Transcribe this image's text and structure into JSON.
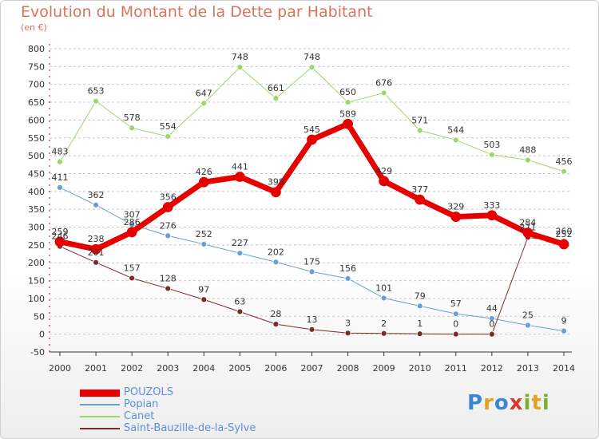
{
  "title": "Evolution du Montant de la Dette par Habitant",
  "unit": "(en €)",
  "logo": {
    "text": "Proxiti",
    "colors": [
      "#3a86d6",
      "#e8a020",
      "#3a86d6",
      "#d93a2a",
      "#7ab030",
      "#e8a020",
      "#7ab030"
    ]
  },
  "chart_data": {
    "type": "line",
    "x": [
      "2000",
      "2001",
      "2002",
      "2003",
      "2004",
      "2005",
      "2006",
      "2007",
      "2008",
      "2009",
      "2010",
      "2011",
      "2012",
      "2013",
      "2014"
    ],
    "yticks": [
      "-50",
      "0",
      "50",
      "100",
      "150",
      "200",
      "250",
      "300",
      "350",
      "400",
      "450",
      "500",
      "550",
      "600",
      "650",
      "700",
      "750",
      "800"
    ],
    "ylim": [
      -50,
      800
    ],
    "grid": "horizontal-dashed",
    "legend": "bottom-left",
    "series": [
      {
        "name": "POUZOLS",
        "color": "#e60000",
        "width": 7,
        "values": [
          259,
          238,
          286,
          356,
          426,
          441,
          398,
          545,
          589,
          429,
          377,
          329,
          333,
          284,
          252
        ],
        "labels": [
          "259",
          "238",
          "286",
          "356",
          "426",
          "441",
          "398",
          "545",
          "589",
          "429",
          "377",
          "329",
          "333",
          "284",
          "252"
        ]
      },
      {
        "name": "Popian",
        "color": "#6a9fd4",
        "width": 1,
        "values": [
          411,
          362,
          307,
          276,
          252,
          227,
          202,
          175,
          156,
          101,
          79,
          57,
          44,
          25,
          9
        ],
        "labels": [
          "411",
          "362",
          "307",
          "276",
          "252",
          "227",
          "202",
          "175",
          "156",
          "101",
          "79",
          "57",
          "44",
          "25",
          "9"
        ]
      },
      {
        "name": "Canet",
        "color": "#9ad86a",
        "width": 1,
        "values": [
          483,
          653,
          578,
          554,
          647,
          748,
          661,
          748,
          650,
          676,
          571,
          544,
          503,
          488,
          456
        ],
        "labels": [
          "483",
          "653",
          "578",
          "554",
          "647",
          "748",
          "661",
          "748",
          "650",
          "676",
          "571",
          "544",
          "503",
          "488",
          "456"
        ]
      },
      {
        "name": "Saint-Bauzille-de-la-Sylve",
        "color": "#7a2a2a",
        "width": 1,
        "values": [
          246,
          201,
          157,
          128,
          97,
          63,
          28,
          13,
          3,
          2,
          1,
          0,
          0,
          271,
          260
        ],
        "labels": [
          "246",
          "201",
          "157",
          "128",
          "97",
          "63",
          "28",
          "13",
          "3",
          "2",
          "1",
          "0",
          "0",
          "271",
          "260"
        ]
      }
    ]
  }
}
